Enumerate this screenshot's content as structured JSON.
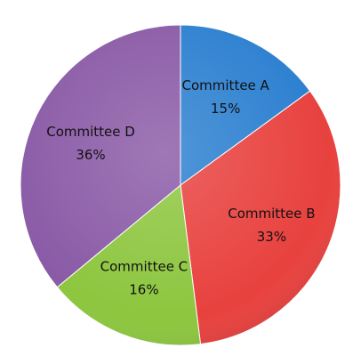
{
  "chart_data": {
    "type": "pie",
    "categories": [
      "Committee A",
      "Committee B",
      "Committee C",
      "Committee D"
    ],
    "values": [
      15,
      33,
      16,
      36
    ],
    "value_labels": [
      "15%",
      "33%",
      "16%",
      "36%"
    ],
    "colors": [
      "#2b7fd0",
      "#e8413e",
      "#8dc63f",
      "#8a5aa6"
    ]
  }
}
